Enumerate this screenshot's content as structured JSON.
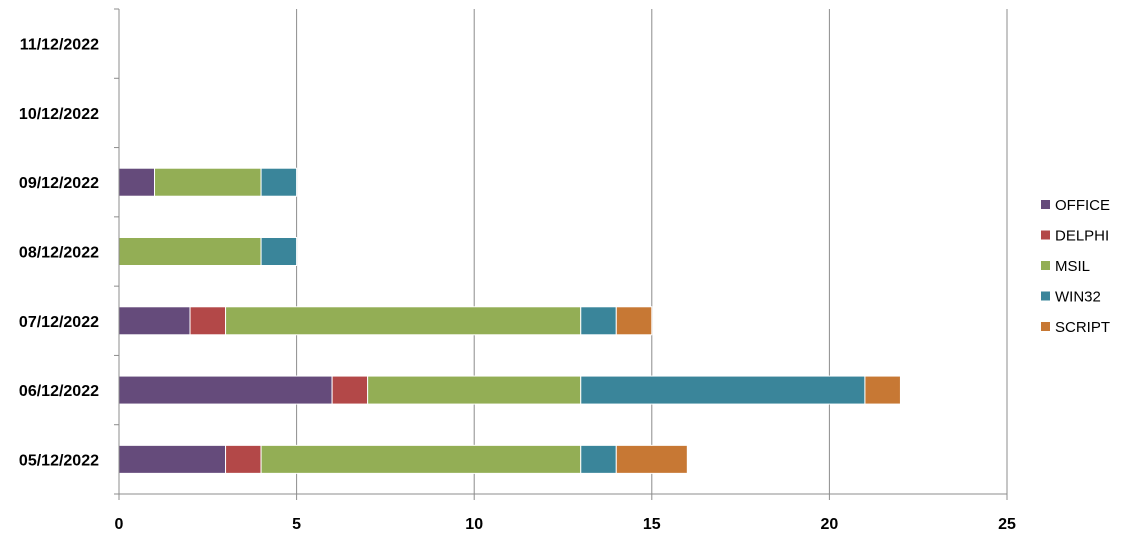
{
  "chart_data": {
    "type": "bar",
    "orientation": "horizontal",
    "stacked": true,
    "categories": [
      "05/12/2022",
      "06/12/2022",
      "07/12/2022",
      "08/12/2022",
      "09/12/2022",
      "10/12/2022",
      "11/12/2022"
    ],
    "series": [
      {
        "name": "OFFICE",
        "color": "#654b7b",
        "values": [
          3,
          6,
          2,
          0,
          1,
          0,
          0
        ]
      },
      {
        "name": "DELPHI",
        "color": "#b34848",
        "values": [
          1,
          1,
          1,
          0,
          0,
          0,
          0
        ]
      },
      {
        "name": "MSIL",
        "color": "#93ae55",
        "values": [
          9,
          6,
          10,
          4,
          3,
          0,
          0
        ]
      },
      {
        "name": "WIN32",
        "color": "#3a859a",
        "values": [
          1,
          8,
          1,
          1,
          1,
          0,
          0
        ]
      },
      {
        "name": "SCRIPT",
        "color": "#c77834",
        "values": [
          2,
          1,
          1,
          0,
          0,
          0,
          0
        ]
      }
    ],
    "xlim": [
      0,
      25
    ],
    "xticks": [
      "0",
      "5",
      "10",
      "15",
      "20",
      "25"
    ],
    "grid": true,
    "legend_position": "right",
    "title": "",
    "xlabel": "",
    "ylabel": ""
  }
}
